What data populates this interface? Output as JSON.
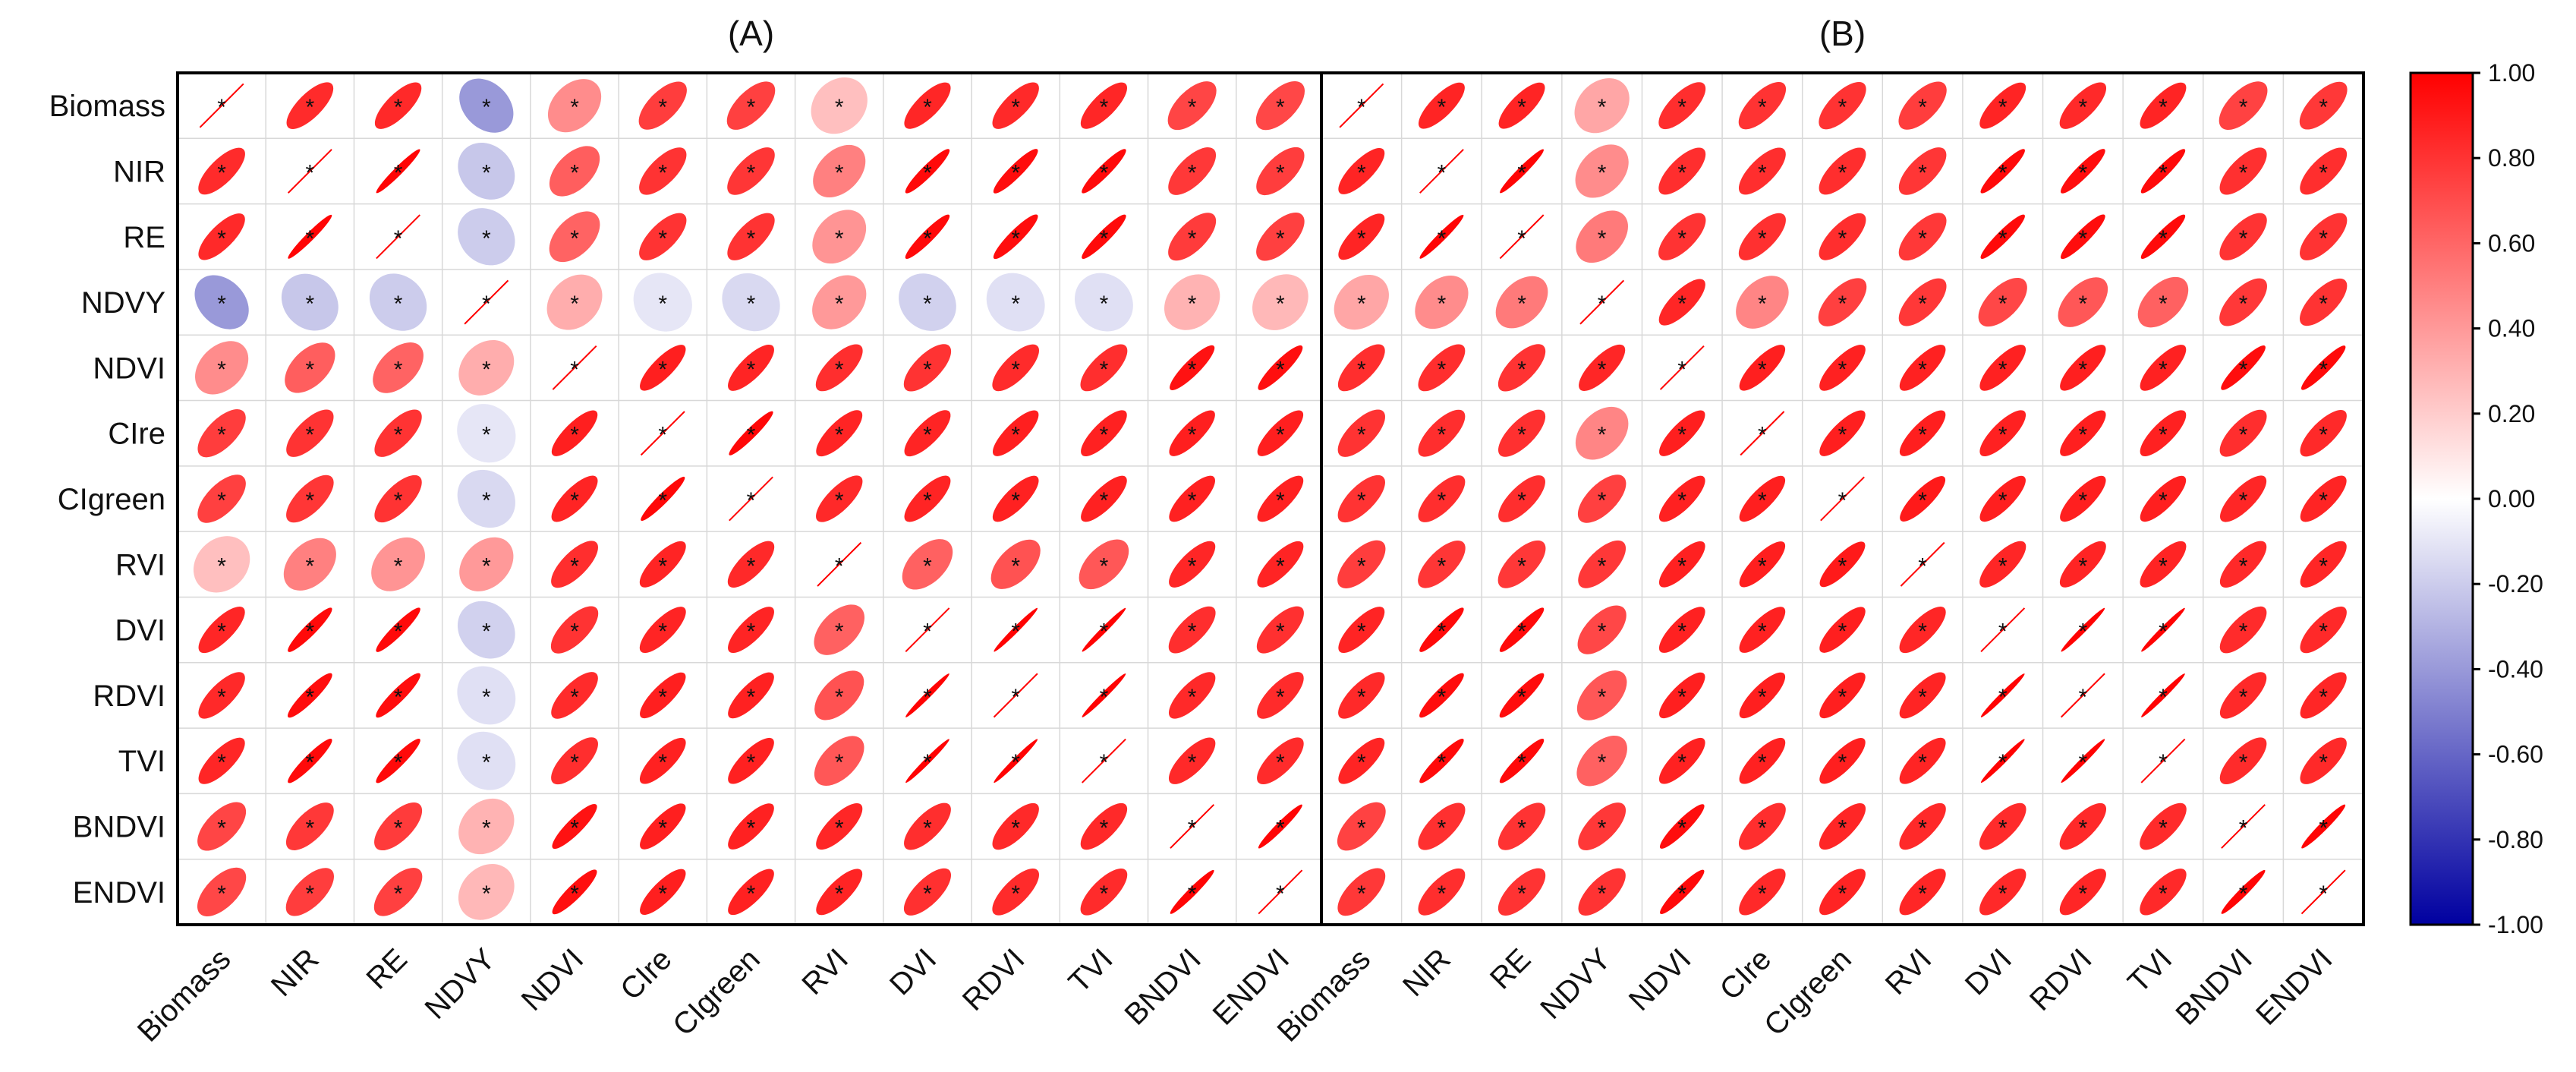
{
  "figure": {
    "background": "#ffffff",
    "grid_color": "#d8d8d8",
    "frame_color": "#000000"
  },
  "chart_data": [
    {
      "type": "heatmap",
      "subtype": "correlation-ellipse",
      "title": "(A)",
      "variables": [
        "Biomass",
        "NIR",
        "RE",
        "NDVY",
        "NDVI",
        "CIre",
        "CIgreen",
        "RVI",
        "DVI",
        "RDVI",
        "TVI",
        "BNDVI",
        "ENDVI"
      ],
      "values": [
        [
          1.0,
          0.83,
          0.84,
          -0.4,
          0.45,
          0.76,
          0.75,
          0.25,
          0.85,
          0.84,
          0.85,
          0.73,
          0.72
        ],
        [
          0.83,
          1.0,
          0.98,
          -0.22,
          0.63,
          0.8,
          0.79,
          0.5,
          0.96,
          0.95,
          0.96,
          0.78,
          0.76
        ],
        [
          0.84,
          0.98,
          1.0,
          -0.2,
          0.61,
          0.8,
          0.8,
          0.42,
          0.96,
          0.95,
          0.96,
          0.77,
          0.75
        ],
        [
          -0.4,
          -0.22,
          -0.2,
          1.0,
          0.32,
          -0.1,
          -0.15,
          0.4,
          -0.18,
          -0.12,
          -0.12,
          0.3,
          0.28
        ],
        [
          0.45,
          0.63,
          0.61,
          0.32,
          1.0,
          0.88,
          0.86,
          0.82,
          0.8,
          0.83,
          0.82,
          0.93,
          0.94
        ],
        [
          0.76,
          0.8,
          0.8,
          -0.1,
          0.88,
          1.0,
          0.97,
          0.86,
          0.86,
          0.88,
          0.87,
          0.88,
          0.88
        ],
        [
          0.75,
          0.79,
          0.8,
          -0.15,
          0.86,
          0.97,
          1.0,
          0.84,
          0.86,
          0.87,
          0.87,
          0.87,
          0.87
        ],
        [
          0.25,
          0.5,
          0.42,
          0.4,
          0.82,
          0.86,
          0.84,
          1.0,
          0.62,
          0.68,
          0.66,
          0.85,
          0.86
        ],
        [
          0.85,
          0.96,
          0.96,
          -0.18,
          0.8,
          0.86,
          0.86,
          0.62,
          1.0,
          0.99,
          0.99,
          0.82,
          0.81
        ],
        [
          0.84,
          0.95,
          0.95,
          -0.12,
          0.83,
          0.88,
          0.87,
          0.68,
          0.99,
          1.0,
          0.99,
          0.84,
          0.83
        ],
        [
          0.85,
          0.96,
          0.96,
          -0.12,
          0.82,
          0.87,
          0.87,
          0.66,
          0.99,
          0.99,
          1.0,
          0.84,
          0.83
        ],
        [
          0.73,
          0.78,
          0.77,
          0.3,
          0.93,
          0.88,
          0.87,
          0.85,
          0.82,
          0.84,
          0.84,
          1.0,
          0.98
        ],
        [
          0.72,
          0.76,
          0.75,
          0.28,
          0.94,
          0.88,
          0.87,
          0.86,
          0.81,
          0.83,
          0.83,
          0.98,
          1.0
        ]
      ],
      "significance_marker": "*",
      "significant": "all"
    },
    {
      "type": "heatmap",
      "subtype": "correlation-ellipse",
      "title": "(B)",
      "variables": [
        "Biomass",
        "NIR",
        "RE",
        "NDVY",
        "NDVI",
        "CIre",
        "CIgreen",
        "RVI",
        "DVI",
        "RDVI",
        "TVI",
        "BNDVI",
        "ENDVI"
      ],
      "values": [
        [
          1.0,
          0.86,
          0.86,
          0.35,
          0.82,
          0.8,
          0.8,
          0.76,
          0.86,
          0.84,
          0.86,
          0.74,
          0.78
        ],
        [
          0.86,
          1.0,
          0.98,
          0.45,
          0.82,
          0.82,
          0.82,
          0.79,
          0.96,
          0.95,
          0.96,
          0.81,
          0.82
        ],
        [
          0.86,
          0.98,
          1.0,
          0.52,
          0.8,
          0.81,
          0.82,
          0.78,
          0.96,
          0.95,
          0.96,
          0.8,
          0.8
        ],
        [
          0.35,
          0.45,
          0.52,
          1.0,
          0.85,
          0.48,
          0.75,
          0.78,
          0.72,
          0.66,
          0.62,
          0.78,
          0.8
        ],
        [
          0.82,
          0.82,
          0.8,
          0.85,
          1.0,
          0.88,
          0.87,
          0.87,
          0.87,
          0.88,
          0.87,
          0.95,
          0.96
        ],
        [
          0.8,
          0.82,
          0.81,
          0.48,
          0.88,
          1.0,
          0.88,
          0.88,
          0.87,
          0.88,
          0.87,
          0.82,
          0.84
        ],
        [
          0.8,
          0.82,
          0.82,
          0.75,
          0.87,
          0.88,
          1.0,
          0.9,
          0.88,
          0.88,
          0.88,
          0.85,
          0.86
        ],
        [
          0.76,
          0.79,
          0.78,
          0.78,
          0.87,
          0.88,
          0.9,
          1.0,
          0.85,
          0.86,
          0.86,
          0.84,
          0.85
        ],
        [
          0.86,
          0.96,
          0.96,
          0.72,
          0.87,
          0.87,
          0.88,
          0.85,
          1.0,
          0.99,
          0.99,
          0.83,
          0.84
        ],
        [
          0.84,
          0.95,
          0.95,
          0.66,
          0.88,
          0.88,
          0.88,
          0.86,
          0.99,
          1.0,
          0.99,
          0.84,
          0.85
        ],
        [
          0.86,
          0.96,
          0.96,
          0.62,
          0.87,
          0.87,
          0.88,
          0.86,
          0.99,
          0.99,
          1.0,
          0.83,
          0.84
        ],
        [
          0.74,
          0.81,
          0.8,
          0.78,
          0.95,
          0.82,
          0.85,
          0.84,
          0.83,
          0.84,
          0.83,
          1.0,
          0.98
        ],
        [
          0.78,
          0.82,
          0.8,
          0.8,
          0.96,
          0.84,
          0.86,
          0.85,
          0.84,
          0.85,
          0.84,
          0.98,
          1.0
        ]
      ],
      "significance_marker": "*",
      "significant": "all"
    }
  ],
  "colorbar": {
    "range": [
      -1,
      1
    ],
    "ticks": [
      "1.00",
      "0.80",
      "0.60",
      "0.40",
      "0.20",
      "0.00",
      "-0.20",
      "-0.40",
      "-0.60",
      "-0.80",
      "-1.00"
    ],
    "low_color": "#0000a0",
    "mid_color": "#ffffff",
    "high_color": "#ff0000"
  }
}
